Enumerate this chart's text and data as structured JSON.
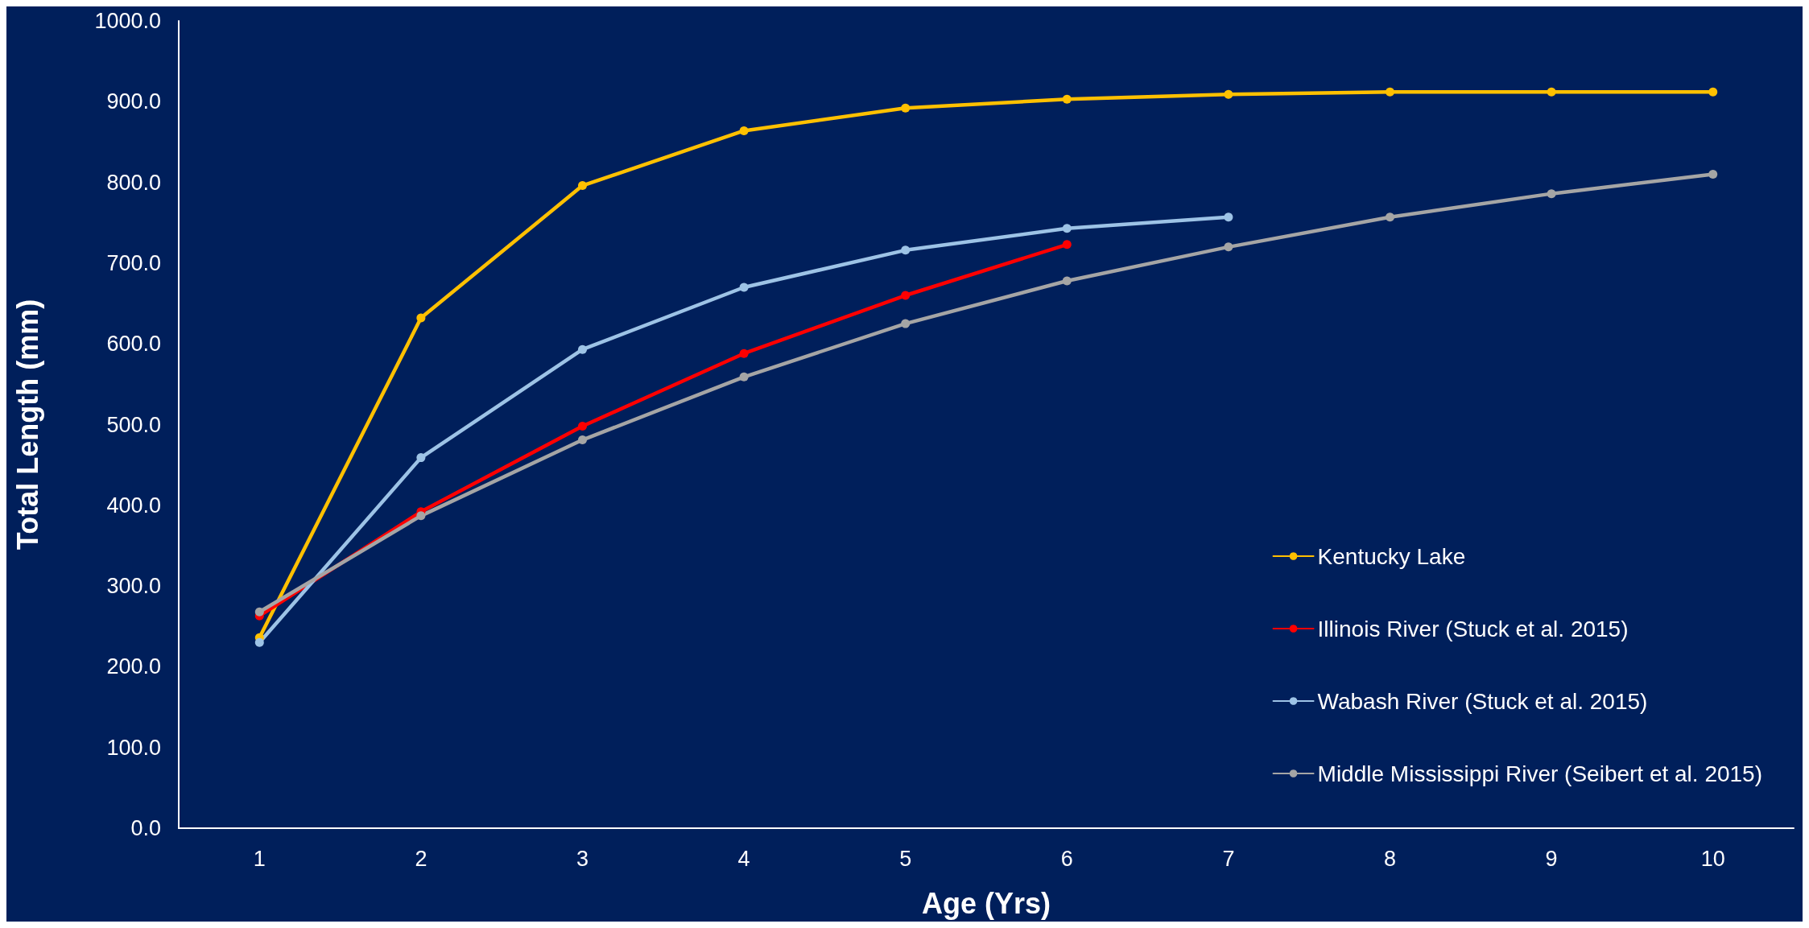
{
  "chart_data": {
    "type": "line",
    "xlabel": "Age (Yrs)",
    "ylabel": "Total Length (mm)",
    "categories": [
      "1",
      "2",
      "3",
      "4",
      "5",
      "6",
      "7",
      "8",
      "9",
      "10"
    ],
    "series": [
      {
        "name": "Kentucky Lake",
        "color": "#ffc000",
        "values": [
          236,
          632,
          796,
          864,
          892,
          903,
          909,
          912,
          912,
          912
        ]
      },
      {
        "name": "Illinois River (Stuck et al. 2015)",
        "color": "#ff0000",
        "values": [
          263,
          392,
          498,
          588,
          660,
          723,
          null,
          null,
          null,
          null
        ]
      },
      {
        "name": "Wabash River (Stuck et al. 2015)",
        "color": "#9dc3e6",
        "values": [
          230,
          459,
          593,
          670,
          716,
          743,
          757,
          null,
          null,
          null
        ]
      },
      {
        "name": "Middle Mississippi River (Seibert et al. 2015)",
        "color": "#a5a5a5",
        "values": [
          268,
          387,
          481,
          559,
          625,
          678,
          720,
          757,
          786,
          810
        ]
      }
    ],
    "ylim": [
      0,
      1000
    ],
    "yticks": [
      {
        "value": 0,
        "label": "0.0"
      },
      {
        "value": 100,
        "label": "100.0"
      },
      {
        "value": 200,
        "label": "200.0"
      },
      {
        "value": 300,
        "label": "300.0"
      },
      {
        "value": 400,
        "label": "400.0"
      },
      {
        "value": 500,
        "label": "500.0"
      },
      {
        "value": 600,
        "label": "600.0"
      },
      {
        "value": 700,
        "label": "700.0"
      },
      {
        "value": 800,
        "label": "800.0"
      },
      {
        "value": 900,
        "label": "900.0"
      },
      {
        "value": 1000,
        "label": "1000.0"
      }
    ],
    "grid": false,
    "legend": "bottom right",
    "marker": "circle",
    "line_style": "solid"
  }
}
